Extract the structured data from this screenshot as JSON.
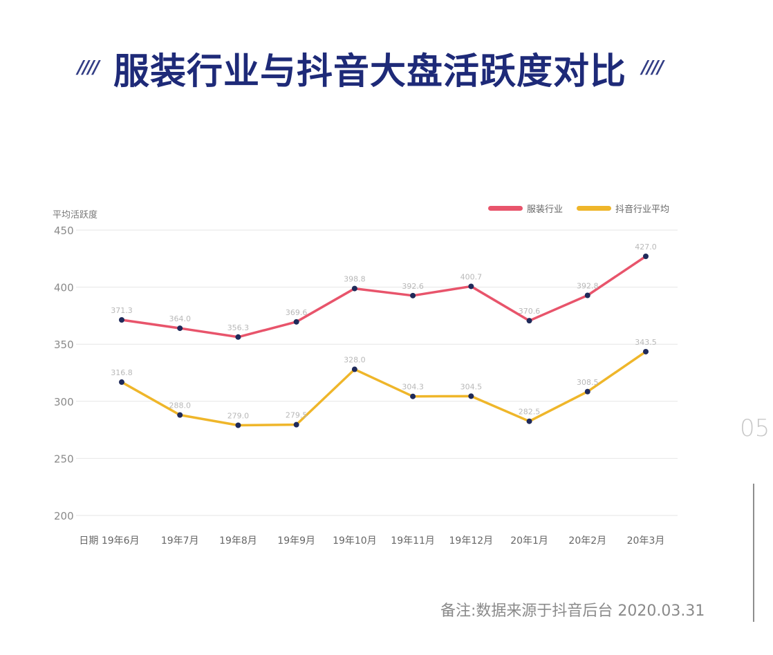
{
  "title": "服装行业与抖音大盘活跃度对比",
  "title_deco": "////",
  "page_number": "05",
  "note": "备注:数据来源于抖音后台 2020.03.31",
  "chart_data": {
    "type": "line",
    "ylabel": "平均活跃度",
    "ylim": [
      200,
      450
    ],
    "yticks": [
      200,
      250,
      300,
      350,
      400,
      450
    ],
    "categories": [
      "日期 19年6月",
      "19年7月",
      "19年8月",
      "19年9月",
      "19年10月",
      "19年11月",
      "19年12月",
      "20年1月",
      "20年2月",
      "20年3月"
    ],
    "legend_position": "top-right",
    "grid": true,
    "series": [
      {
        "name": "服装行业",
        "color": "#e8546b",
        "values": [
          371.3,
          364.0,
          356.3,
          369.6,
          398.8,
          392.6,
          400.7,
          370.6,
          392.8,
          427.0
        ],
        "labels": [
          "371.3",
          "364.0",
          "356.3",
          "369.6",
          "398.8",
          "392.6",
          "400.7",
          "370.6",
          "392.8",
          "427.0"
        ]
      },
      {
        "name": "抖音行业平均",
        "color": "#efb62a",
        "values": [
          316.8,
          288.0,
          279.0,
          279.5,
          328.0,
          304.3,
          304.5,
          282.5,
          308.5,
          343.5
        ],
        "labels": [
          "316.8",
          "288.0",
          "279.0",
          "279.5",
          "328.0",
          "304.3",
          "304.5",
          "282.5",
          "308.5",
          "343.5"
        ]
      }
    ]
  },
  "colors": {
    "marker": "#1f2a5a",
    "grid": "#e6e6e6",
    "axis_text": "#8a8a8a"
  }
}
